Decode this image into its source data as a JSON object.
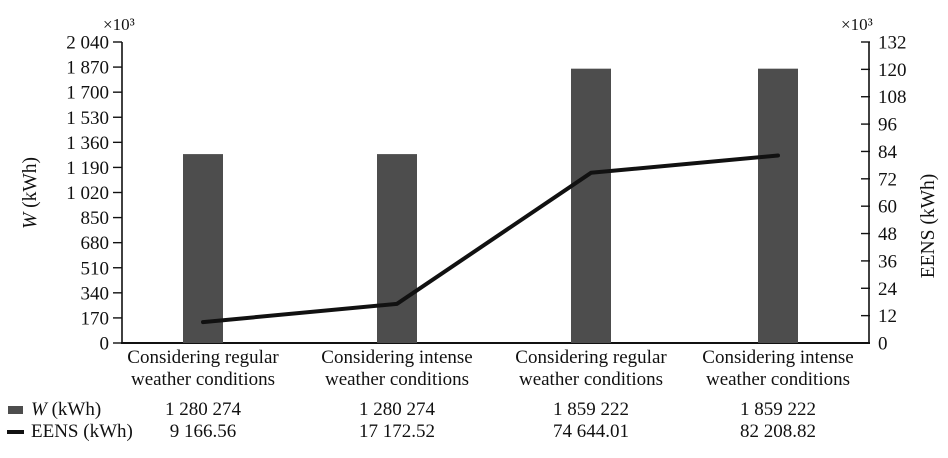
{
  "figure": {
    "multiplier_left": "×10³",
    "multiplier_right": "×10³"
  },
  "colors": {
    "bar": "#4d4d4d",
    "line": "#111111",
    "axis": "#111111",
    "text": "#111111"
  },
  "chart_data": {
    "type": "bar+line",
    "legend_position": "bottom-left",
    "grid": false,
    "categories": [
      "Considering regular weather conditions",
      "Considering intense weather conditions",
      "Considering regular weather conditions",
      "Considering intense weather conditions"
    ],
    "series": [
      {
        "name": "W (kWh)",
        "name_var": "W",
        "name_unit": " (kWh)",
        "type": "bar",
        "axis": "left",
        "values": [
          1280274,
          1280274,
          1859222,
          1859222
        ],
        "display_values": [
          "1 280 274",
          "1 280 274",
          "1 859 222",
          "1 859 222"
        ]
      },
      {
        "name": "EENS (kWh)",
        "type": "line",
        "axis": "right",
        "values": [
          9166.56,
          17172.52,
          74644.01,
          82208.82
        ],
        "display_values": [
          "9 166.56",
          "17 172.52",
          "74 644.01",
          "82 208.82"
        ]
      }
    ],
    "left_axis": {
      "label": "W (kWh)",
      "label_var": "W",
      "label_unit": " (kWh)",
      "multiplier": "×10³",
      "range": [
        0,
        2040000
      ],
      "tick_step": 170000,
      "ticks": [
        "0",
        "170",
        "340",
        "510",
        "680",
        "850",
        "1 020",
        "1 190",
        "1 360",
        "1 530",
        "1 700",
        "1 870",
        "2 040"
      ]
    },
    "right_axis": {
      "label": "EENS (kWh)",
      "multiplier": "×10³",
      "range": [
        0,
        132000
      ],
      "tick_step": 12000,
      "ticks": [
        "0",
        "12",
        "24",
        "36",
        "48",
        "60",
        "72",
        "84",
        "96",
        "108",
        "120",
        "132"
      ]
    }
  }
}
